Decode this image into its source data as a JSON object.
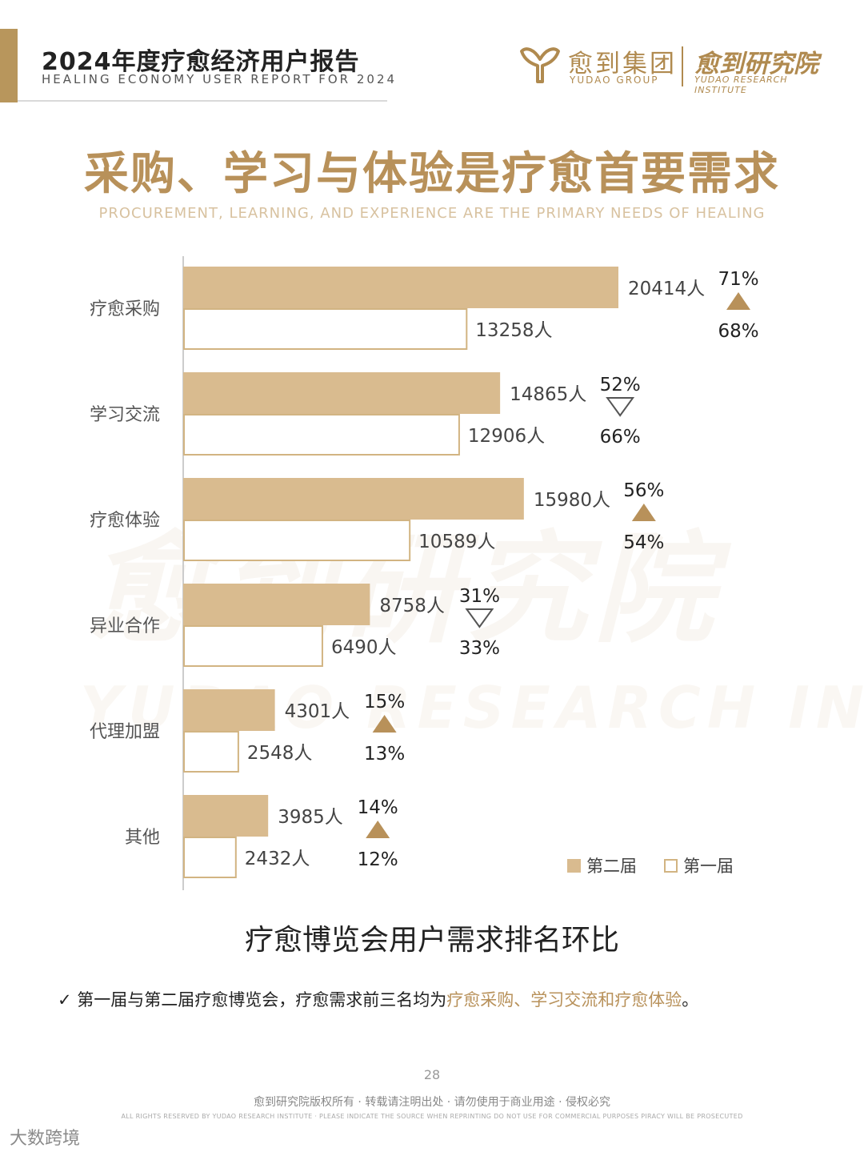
{
  "header": {
    "title": "2024年度疗愈经济用户报告",
    "subtitle": "HEALING ECONOMY USER REPORT FOR 2024",
    "brand_cn": "愈到集团",
    "brand_en": "YUDAO GROUP",
    "institute_cn": "愈到研究院",
    "institute_en": "YUDAO RESEARCH INSTITUTE",
    "logo_icon": "yudao-logo-icon"
  },
  "title": {
    "main": "采购、学习与体验是疗愈首要需求",
    "sub": "PROCUREMENT, LEARNING, AND EXPERIENCE ARE THE PRIMARY NEEDS OF HEALING"
  },
  "watermark": {
    "cn": "愈到研究院",
    "en": "YUDAO RESEARCH INSTITUTE"
  },
  "chart_data": {
    "type": "bar",
    "orientation": "horizontal",
    "categories": [
      "疗愈采购",
      "学习交流",
      "疗愈体验",
      "异业合作",
      "代理加盟",
      "其他"
    ],
    "series": [
      {
        "name": "第二届",
        "values": [
          20414,
          14865,
          15980,
          8758,
          4301,
          3985
        ],
        "labels": [
          "20414人",
          "14865人",
          "15980人",
          "8758人",
          "4301人",
          "3985人"
        ],
        "pct": [
          "71%",
          "52%",
          "56%",
          "31%",
          "15%",
          "14%"
        ]
      },
      {
        "name": "第一届",
        "values": [
          13258,
          12906,
          10589,
          6490,
          2548,
          2432
        ],
        "labels": [
          "13258人",
          "12906人",
          "10589人",
          "6490人",
          "2548人",
          "2432人"
        ],
        "pct": [
          "68%",
          "66%",
          "54%",
          "33%",
          "13%",
          "12%"
        ]
      }
    ],
    "trend": [
      "up",
      "down",
      "up",
      "down",
      "up",
      "up"
    ],
    "legend_position": "bottom-right",
    "colors": {
      "second": "#d9bb8f",
      "first": "#ffffff",
      "border": "#d2b482",
      "up": "#b8915a",
      "down_stroke": "#555555"
    },
    "title": "疗愈博览会用户需求排名环比"
  },
  "note": {
    "check_icon": "checkmark-icon",
    "prefix": "✓ 第一届与第二届疗愈博览会，疗愈需求前三名均为",
    "highlight": "疗愈采购、学习交流和疗愈体验",
    "suffix": "。"
  },
  "footer": {
    "page": "28",
    "copyright_cn": "愈到研究院版权所有 · 转载请注明出处 · 请勿使用于商业用途 · 侵权必究",
    "copyright_en": "ALL RIGHTS RESERVED BY YUDAO RESEARCH INSTITUTE · PLEASE INDICATE THE SOURCE WHEN REPRINTING DO NOT USE FOR COMMERCIAL PURPOSES PIRACY WILL BE PROSECUTED",
    "corner_mark": "大数跨境"
  }
}
